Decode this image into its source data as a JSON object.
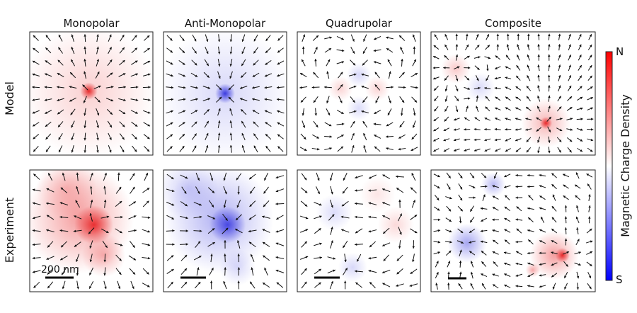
{
  "columns": [
    "Monopolar",
    "Anti-Monopolar",
    "Quadrupolar",
    "Composite"
  ],
  "rows": [
    "Model",
    "Experiment"
  ],
  "colorbar": {
    "label": "Magnetic Charge Density",
    "top_label": "N",
    "bottom_label": "S",
    "top_color": "#ff0000",
    "mid_color": "#ffffff",
    "bottom_color": "#0000ff"
  },
  "scale_bar_label": "200 nm",
  "colors": {
    "positive": "#e8282a",
    "negative": "#3a3ae0",
    "arrow": "#111111"
  }
}
